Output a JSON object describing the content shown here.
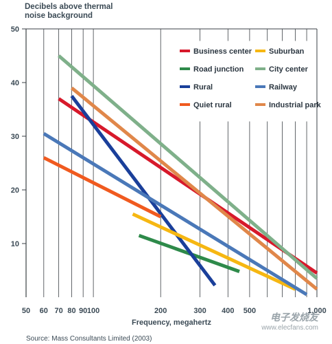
{
  "chart_data": {
    "type": "line",
    "title": "",
    "ylabel": "Decibels above thermal\nnoise background",
    "xlabel": "Frequency, megahertz",
    "xscale": "log",
    "xlim": [
      50,
      1000
    ],
    "ylim": [
      0,
      50
    ],
    "x_tick_labels": [
      "50",
      "60",
      "70",
      "80",
      "90",
      "100",
      "200",
      "300",
      "400",
      "500",
      "1,000"
    ],
    "x_ticks": [
      50,
      60,
      70,
      80,
      90,
      100,
      200,
      300,
      400,
      500,
      1000
    ],
    "y_ticks": [
      10,
      20,
      30,
      40,
      50
    ],
    "grid": "vertical",
    "legend_position": "top-right",
    "series": [
      {
        "name": "Business center",
        "color": "#d7192b",
        "x": [
          70,
          1000
        ],
        "y": [
          37,
          4.5
        ]
      },
      {
        "name": "Road junction",
        "color": "#2e8a4a",
        "x": [
          160,
          450
        ],
        "y": [
          11.5,
          4.8
        ]
      },
      {
        "name": "Rural",
        "color": "#1a3f9a",
        "x": [
          80,
          350
        ],
        "y": [
          37.5,
          2.2
        ]
      },
      {
        "name": "Quiet rural",
        "color": "#f05a1f",
        "x": [
          60,
          200
        ],
        "y": [
          26,
          15
        ]
      },
      {
        "name": "Suburban",
        "color": "#f6b712",
        "x": [
          150,
          800
        ],
        "y": [
          15.5,
          1.5
        ]
      },
      {
        "name": "City center",
        "color": "#7fb08a",
        "x": [
          70,
          1000
        ],
        "y": [
          45,
          3.5
        ]
      },
      {
        "name": "Railway",
        "color": "#4a78b8",
        "x": [
          60,
          900
        ],
        "y": [
          30.5,
          0.5
        ]
      },
      {
        "name": "Industrial park",
        "color": "#e0874a",
        "x": [
          80,
          1000
        ],
        "y": [
          39,
          1.5
        ]
      }
    ]
  },
  "source": "Source: Mass Consultants Limited (2003)",
  "watermark": {
    "title": "电子发烧友",
    "url": "www.elecfans.com"
  }
}
